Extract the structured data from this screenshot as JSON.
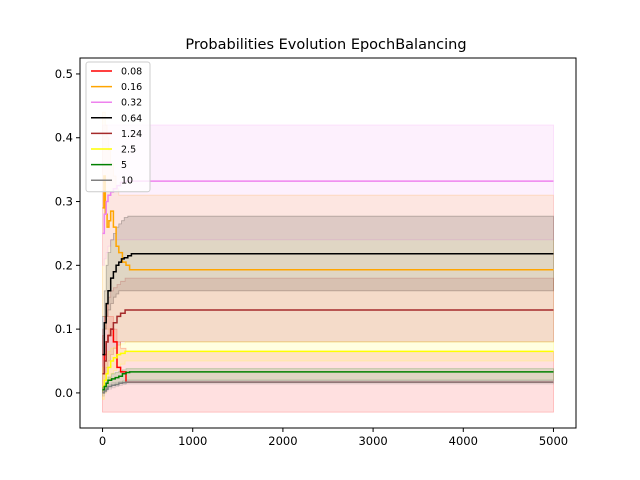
{
  "chart_data": {
    "type": "line",
    "title": "Probabilities Evolution EpochBalancing",
    "xlabel": "",
    "ylabel": "",
    "xlim": [
      -250,
      5250
    ],
    "ylim": [
      -0.055,
      0.525
    ],
    "xticks": [
      0,
      1000,
      2000,
      3000,
      4000,
      5000
    ],
    "yticks": [
      0.0,
      0.1,
      0.2,
      0.3,
      0.4,
      0.5
    ],
    "xtick_labels": [
      "0",
      "1000",
      "2000",
      "3000",
      "4000",
      "5000"
    ],
    "ytick_labels": [
      "0.0",
      "0.1",
      "0.2",
      "0.3",
      "0.4",
      "0.5"
    ],
    "grid": false,
    "legend_position": "upper-left",
    "series": [
      {
        "name": "0.08",
        "color": "#ff0000",
        "x": [
          0,
          20,
          40,
          60,
          90,
          120,
          160,
          200,
          260,
          300,
          5000
        ],
        "y": [
          0.03,
          0.06,
          0.08,
          0.09,
          0.1,
          0.08,
          0.04,
          0.033,
          0.017,
          0.017,
          0.017
        ],
        "band_lower": [
          -0.03,
          -0.03,
          -0.03,
          -0.03,
          -0.03,
          -0.03,
          -0.03,
          -0.03,
          -0.03,
          -0.03,
          -0.03
        ],
        "band_upper": [
          0.09,
          0.12,
          0.14,
          0.12,
          0.12,
          0.1,
          0.08,
          0.07,
          0.065,
          0.065,
          0.065
        ]
      },
      {
        "name": "0.16",
        "color": "#ffa500",
        "x": [
          0,
          15,
          30,
          50,
          70,
          90,
          120,
          150,
          180,
          220,
          260,
          300,
          5000
        ],
        "y": [
          0.29,
          0.34,
          0.28,
          0.26,
          0.27,
          0.285,
          0.26,
          0.23,
          0.22,
          0.205,
          0.2,
          0.193,
          0.193
        ],
        "band_lower": [
          0.12,
          0.12,
          0.1,
          0.1,
          0.09,
          0.09,
          0.08,
          0.08,
          0.08,
          0.08,
          0.08,
          0.08,
          0.08
        ],
        "band_upper": [
          0.44,
          0.44,
          0.42,
          0.4,
          0.38,
          0.36,
          0.34,
          0.32,
          0.31,
          0.31,
          0.31,
          0.31,
          0.31
        ]
      },
      {
        "name": "0.32",
        "color": "#ee82ee",
        "x": [
          0,
          20,
          40,
          60,
          90,
          120,
          160,
          200,
          260,
          300,
          5000
        ],
        "y": [
          0.25,
          0.28,
          0.3,
          0.31,
          0.315,
          0.32,
          0.325,
          0.33,
          0.332,
          0.332,
          0.332
        ],
        "band_lower": [
          0.2,
          0.21,
          0.22,
          0.23,
          0.24,
          0.24,
          0.24,
          0.24,
          0.24,
          0.24,
          0.24
        ],
        "band_upper": [
          0.42,
          0.42,
          0.42,
          0.42,
          0.42,
          0.42,
          0.42,
          0.42,
          0.42,
          0.42,
          0.42
        ]
      },
      {
        "name": "0.64",
        "color": "#000000",
        "x": [
          0,
          20,
          40,
          60,
          90,
          120,
          150,
          180,
          210,
          240,
          280,
          320,
          5000
        ],
        "y": [
          0.06,
          0.11,
          0.14,
          0.16,
          0.18,
          0.19,
          0.2,
          0.205,
          0.21,
          0.212,
          0.215,
          0.218,
          0.218
        ],
        "band_lower": [
          0.06,
          0.1,
          0.12,
          0.13,
          0.14,
          0.15,
          0.155,
          0.16,
          0.16,
          0.16,
          0.16,
          0.16,
          0.16
        ],
        "band_upper": [
          0.12,
          0.16,
          0.2,
          0.22,
          0.24,
          0.25,
          0.26,
          0.265,
          0.27,
          0.275,
          0.277,
          0.277,
          0.277
        ]
      },
      {
        "name": "1.24",
        "color": "#a52a2a",
        "x": [
          0,
          20,
          40,
          60,
          90,
          120,
          160,
          200,
          250,
          300,
          5000
        ],
        "y": [
          0.03,
          0.05,
          0.08,
          0.09,
          0.1,
          0.11,
          0.12,
          0.125,
          0.13,
          0.13,
          0.13
        ],
        "band_lower": [
          0.0,
          0.02,
          0.04,
          0.05,
          0.06,
          0.07,
          0.075,
          0.08,
          0.08,
          0.08,
          0.08
        ],
        "band_upper": [
          0.1,
          0.12,
          0.14,
          0.15,
          0.16,
          0.165,
          0.17,
          0.175,
          0.18,
          0.18,
          0.18
        ]
      },
      {
        "name": "2.5",
        "color": "#ffff00",
        "x": [
          0,
          20,
          40,
          60,
          90,
          120,
          160,
          200,
          250,
          300,
          5000
        ],
        "y": [
          0.01,
          0.02,
          0.03,
          0.04,
          0.05,
          0.055,
          0.06,
          0.062,
          0.065,
          0.065,
          0.065
        ],
        "band_lower": [
          -0.01,
          0.0,
          0.01,
          0.02,
          0.03,
          0.035,
          0.04,
          0.045,
          0.05,
          0.05,
          0.05
        ],
        "band_upper": [
          0.04,
          0.05,
          0.06,
          0.065,
          0.07,
          0.072,
          0.075,
          0.077,
          0.08,
          0.08,
          0.08
        ]
      },
      {
        "name": "5",
        "color": "#008000",
        "x": [
          0,
          20,
          40,
          60,
          100,
          140,
          180,
          220,
          260,
          300,
          5000
        ],
        "y": [
          0.005,
          0.01,
          0.015,
          0.02,
          0.022,
          0.024,
          0.026,
          0.03,
          0.032,
          0.033,
          0.033
        ],
        "band_lower": [
          0.0,
          0.005,
          0.008,
          0.01,
          0.012,
          0.014,
          0.016,
          0.018,
          0.02,
          0.02,
          0.02
        ],
        "band_upper": [
          0.01,
          0.015,
          0.02,
          0.025,
          0.03,
          0.032,
          0.034,
          0.036,
          0.038,
          0.038,
          0.038
        ]
      },
      {
        "name": "10",
        "color": "#808080",
        "x": [
          0,
          20,
          40,
          60,
          100,
          140,
          180,
          220,
          260,
          300,
          5000
        ],
        "y": [
          0.0,
          0.003,
          0.006,
          0.01,
          0.012,
          0.013,
          0.015,
          0.016,
          0.017,
          0.017,
          0.017
        ],
        "band_lower": [
          -0.005,
          0.0,
          0.003,
          0.006,
          0.008,
          0.01,
          0.012,
          0.013,
          0.014,
          0.014,
          0.014
        ],
        "band_upper": [
          0.005,
          0.008,
          0.01,
          0.014,
          0.016,
          0.017,
          0.018,
          0.019,
          0.02,
          0.02,
          0.02
        ]
      }
    ]
  }
}
